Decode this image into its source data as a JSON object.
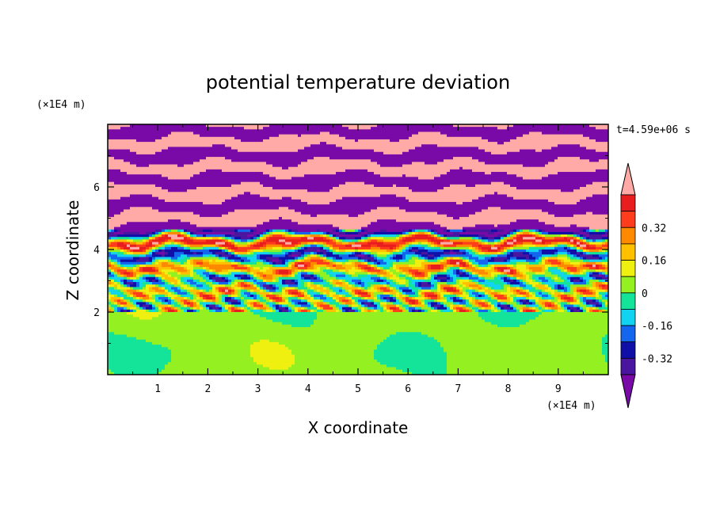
{
  "chart_data": {
    "type": "heatmap",
    "title": "potential temperature deviation",
    "xlabel": "X coordinate",
    "ylabel": "Z coordinate",
    "x_unit": "(×1E4 m)",
    "y_unit": "(×1E4 m)",
    "time_label": "t=4.59e+06 s",
    "xlim": [
      0,
      10
    ],
    "ylim": [
      0,
      8
    ],
    "x_ticks": [
      "1",
      "2",
      "3",
      "4",
      "5",
      "6",
      "7",
      "8",
      "9"
    ],
    "y_ticks": [
      "2",
      "4",
      "6"
    ],
    "colorbar": {
      "levels": [
        -0.48,
        -0.4,
        -0.32,
        -0.24,
        -0.16,
        -0.08,
        0,
        0.08,
        0.16,
        0.24,
        0.32,
        0.4,
        0.48
      ],
      "colors": [
        "#7a0aa8",
        "#4a16a0",
        "#1010a8",
        "#1466ee",
        "#12d4f0",
        "#14e49a",
        "#94f020",
        "#f0f010",
        "#ffc000",
        "#ff8a00",
        "#ff3c1c",
        "#e81e1e",
        "#ffaaa6"
      ],
      "tick_labels": [
        "0.32",
        "0.16",
        "0",
        "-0.16",
        "-0.32"
      ],
      "tick_values": [
        0.32,
        0.16,
        0,
        -0.16,
        -0.32
      ]
    },
    "field": {
      "lower_region_z": [
        0,
        2
      ],
      "lower_region_dominant": "#94f020",
      "upper_banding_period_z": 0.4,
      "upper_banding_colors": [
        "#7a0aa8",
        "#ffaaa6"
      ]
    }
  }
}
